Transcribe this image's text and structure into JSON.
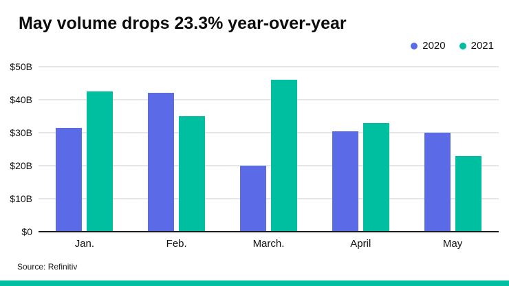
{
  "title": "May volume drops 23.3% year-over-year",
  "source": "Source: Refinitiv",
  "colors": {
    "series_2020": "#5b6be8",
    "series_2021": "#00bfa0",
    "gridline": "#c9cdd2",
    "baseline": "#1c1c1c",
    "bottom_strip": "#00bfa0"
  },
  "chart_data": {
    "type": "bar",
    "title": "May volume drops 23.3% year-over-year",
    "categories": [
      "Jan.",
      "Feb.",
      "March.",
      "April",
      "May"
    ],
    "series": [
      {
        "name": "2020",
        "color": "#5b6be8",
        "values": [
          31.5,
          42,
          20,
          30.5,
          30
        ]
      },
      {
        "name": "2021",
        "color": "#00bfa0",
        "values": [
          42.5,
          35,
          46,
          33,
          23
        ]
      }
    ],
    "xlabel": "",
    "ylabel": "",
    "ylim": [
      0,
      50
    ],
    "yticks": [
      {
        "value": 0,
        "label": "$0"
      },
      {
        "value": 10,
        "label": "$10B"
      },
      {
        "value": 20,
        "label": "$20B"
      },
      {
        "value": 30,
        "label": "$30B"
      },
      {
        "value": 40,
        "label": "$40B"
      },
      {
        "value": 50,
        "label": "$50B"
      }
    ],
    "grid": true,
    "legend_position": "top-right"
  }
}
